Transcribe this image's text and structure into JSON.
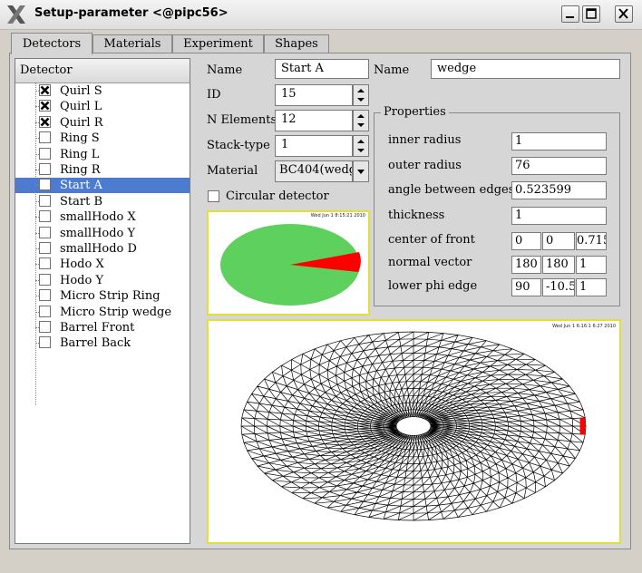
{
  "window": {
    "title": "Setup-parameter <@pipc56>"
  },
  "tabs": [
    {
      "label": "Detectors",
      "active": true
    },
    {
      "label": "Materials",
      "active": false
    },
    {
      "label": "Experiment",
      "active": false
    },
    {
      "label": "Shapes",
      "active": false
    }
  ],
  "tree": {
    "header": "Detector",
    "items": [
      {
        "label": "Quirl S",
        "checked": true,
        "selected": false
      },
      {
        "label": "Quirl L",
        "checked": true,
        "selected": false
      },
      {
        "label": "Quirl R",
        "checked": true,
        "selected": false
      },
      {
        "label": "Ring S",
        "checked": false,
        "selected": false
      },
      {
        "label": "Ring L",
        "checked": false,
        "selected": false
      },
      {
        "label": "Ring R",
        "checked": false,
        "selected": false
      },
      {
        "label": "Start A",
        "checked": false,
        "selected": true
      },
      {
        "label": "Start B",
        "checked": false,
        "selected": false
      },
      {
        "label": "smallHodo X",
        "checked": false,
        "selected": false
      },
      {
        "label": "smallHodo Y",
        "checked": false,
        "selected": false
      },
      {
        "label": "smallHodo D",
        "checked": false,
        "selected": false
      },
      {
        "label": "Hodo X",
        "checked": false,
        "selected": false
      },
      {
        "label": "Hodo Y",
        "checked": false,
        "selected": false
      },
      {
        "label": "Micro Strip Ring",
        "checked": false,
        "selected": false
      },
      {
        "label": "Micro Strip wedge",
        "checked": false,
        "selected": false
      },
      {
        "label": "Barrel Front",
        "checked": false,
        "selected": false
      },
      {
        "label": "Barrel Back",
        "checked": false,
        "selected": false
      }
    ]
  },
  "form": {
    "name_label": "Name",
    "name_value": "Start A",
    "id_label": "ID",
    "id_value": "15",
    "nelements_label": "N Elements",
    "nelements_value": "12",
    "stacktype_label": "Stack-type",
    "stacktype_value": "1",
    "material_label": "Material",
    "material_value": "BC404(wedg",
    "circular_label": "Circular detector",
    "circular_checked": false
  },
  "shape": {
    "name_label": "Name",
    "name_value": "wedge",
    "properties_title": "Properties",
    "props": {
      "inner_radius_label": "inner radius",
      "inner_radius": "1",
      "outer_radius_label": "outer radius",
      "outer_radius": "76",
      "angle_label": "angle between edges",
      "angle": "0.523599",
      "thickness_label": "thickness",
      "thickness": "1",
      "center_label": "center of front",
      "center": [
        "0",
        "0",
        "0.715"
      ],
      "normal_label": "normal vector",
      "normal": [
        "180",
        "180",
        "1"
      ],
      "phi_label": "lower phi edge",
      "phi": [
        "90",
        "-10.5",
        "1"
      ]
    }
  },
  "plots": {
    "small_stamp": "Wed Jun 1 8:15:21 2010",
    "large_stamp": "Wed Jun 1 6:16:1 6:27 2010"
  },
  "colors": {
    "pie_fill": "#5ed05e",
    "pie_wedge": "#ff0000",
    "selection": "#4c7bd0",
    "canvas_border": "#e4dd3c"
  }
}
